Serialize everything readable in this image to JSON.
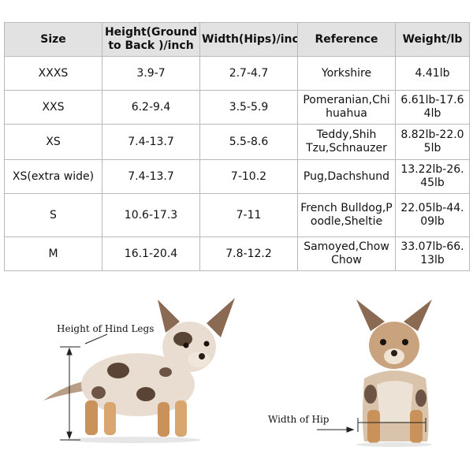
{
  "table": {
    "headers": [
      "Size",
      "Height(Ground to Back )/inch",
      "Width(Hips)/inch",
      "Reference",
      "Weight/lb"
    ],
    "rows": [
      [
        "XXXS",
        "3.9-7",
        "2.7-4.7",
        "Yorkshire",
        "4.41lb"
      ],
      [
        "XXS",
        "6.2-9.4",
        "3.5-5.9",
        "Pomeranian,Chihuahua",
        "6.61lb-17.64lb"
      ],
      [
        "XS",
        "7.4-13.7",
        "5.5-8.6",
        "Teddy,Shih Tzu,Schnauzer",
        "8.82lb-22.05lb"
      ],
      [
        "XS(extra wide)",
        "7.4-13.7",
        "7-10.2",
        "Pug,Dachshund",
        "13.22lb-26.45lb"
      ],
      [
        "S",
        "10.6-17.3",
        "7-11",
        "French Bulldog,Poodle,Sheltie",
        "22.05lb-44.09lb"
      ],
      [
        "M",
        "16.1-20.4",
        "7.8-12.2",
        "Samoyed,Chow Chow",
        "33.07lb-66.13lb"
      ]
    ]
  },
  "labels": {
    "hind_legs": "Height of Hind Legs",
    "hip_width": "Width of Hip"
  },
  "colors": {
    "header_bg": "#e2e2e2",
    "border": "#b9b9b9",
    "fur_light": "#e8ddd0",
    "fur_tan": "#c9925a",
    "fur_spot": "#5a4436"
  }
}
